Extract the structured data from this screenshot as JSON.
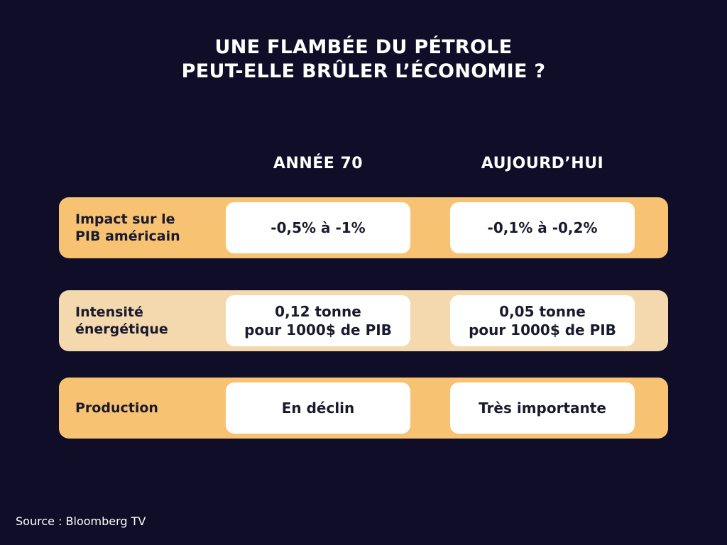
{
  "title": {
    "line1": "UNE FLAMBÉE DU PÉTROLE",
    "line2": "PEUT-ELLE BRÛLER L’ÉCONOMIE ?"
  },
  "columns": [
    "ANNÉE 70",
    "AUJOURD’HUI"
  ],
  "rows": [
    {
      "label_lines": [
        "Impact sur le",
        "PIB américain"
      ],
      "values": [
        [
          "-0,5% à -1%"
        ],
        [
          "-0,1% à -0,2%"
        ]
      ]
    },
    {
      "label_lines": [
        "Intensité",
        "énergétique"
      ],
      "values": [
        [
          "0,12 tonne",
          "pour 1000$ de PIB"
        ],
        [
          "0,05 tonne",
          "pour 1000$ de PIB"
        ]
      ]
    },
    {
      "label_lines": [
        "Production"
      ],
      "values": [
        [
          "En déclin"
        ],
        [
          "Très importante"
        ]
      ]
    }
  ],
  "source": "Source : Bloomberg TV",
  "colors": {
    "background": "#0f0d27",
    "row_orange": "#f7c372",
    "row_beige": "#f3d9ad",
    "cell": "#ffffff",
    "text_dark": "#1a1a2e"
  }
}
